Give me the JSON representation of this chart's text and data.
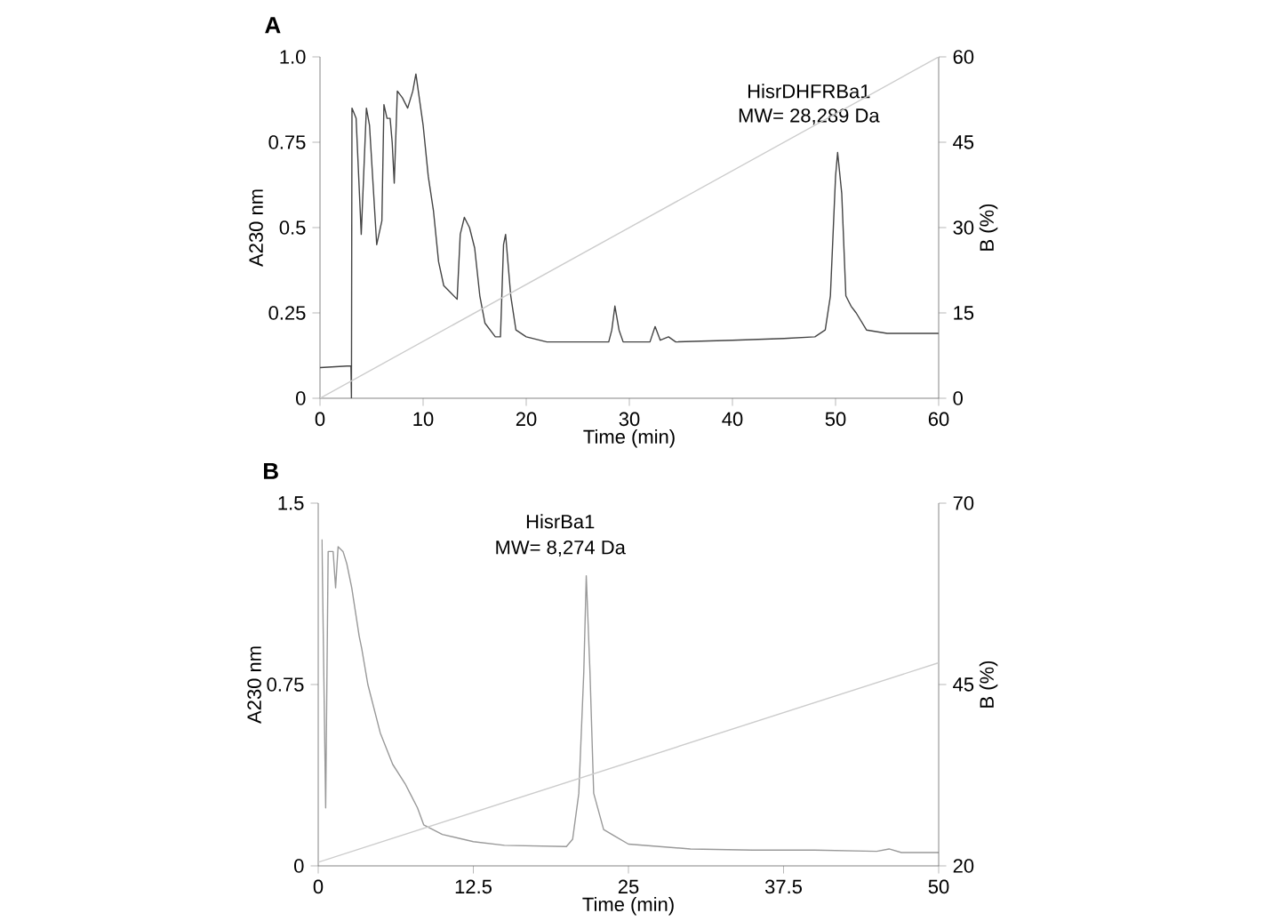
{
  "chart_data": [
    {
      "type": "line",
      "title": "A",
      "xlabel": "Time (min)",
      "ylabel": "A230 nm",
      "y2label": "B (%)",
      "annotations": [
        "HisrDHFRBa1",
        "MW= 28,289 Da"
      ],
      "xlim": [
        0,
        60
      ],
      "ylim": [
        0,
        1
      ],
      "y2lim": [
        0,
        60
      ],
      "xticks": [
        0,
        10,
        20,
        30,
        40,
        50,
        60
      ],
      "yticks": [
        0,
        0.25,
        0.5,
        0.75,
        {
          "value": 1,
          "label": "1.0"
        }
      ],
      "y2ticks": [
        0,
        15,
        30,
        45,
        60
      ],
      "series": [
        {
          "color": "#444444",
          "x": [
            0,
            3,
            3.05,
            3.1,
            3.5,
            4,
            4.5,
            4.8,
            5.5,
            6,
            6.2,
            6.5,
            6.8,
            7,
            7.2,
            7.5,
            8,
            8.5,
            9,
            9.3,
            10,
            10.5,
            11,
            11.5,
            12,
            13.3,
            13.6,
            14,
            14.5,
            15,
            15.5,
            16,
            17,
            17.5,
            17.8,
            18,
            18.5,
            19,
            20,
            22,
            25,
            28,
            28.3,
            28.6,
            29,
            29.4,
            32,
            32.5,
            33,
            33.8,
            34.5,
            40,
            45,
            48,
            49,
            49.5,
            50,
            50.2,
            50.6,
            51,
            51.5,
            52,
            53,
            55,
            60
          ],
          "values": [
            0.09,
            0.095,
            0,
            0.85,
            0.82,
            0.48,
            0.85,
            0.8,
            0.45,
            0.52,
            0.86,
            0.82,
            0.82,
            0.75,
            0.63,
            0.9,
            0.88,
            0.85,
            0.9,
            0.95,
            0.8,
            0.65,
            0.55,
            0.4,
            0.33,
            0.29,
            0.48,
            0.53,
            0.5,
            0.44,
            0.3,
            0.22,
            0.18,
            0.18,
            0.45,
            0.48,
            0.3,
            0.2,
            0.18,
            0.165,
            0.165,
            0.165,
            0.2,
            0.27,
            0.2,
            0.165,
            0.165,
            0.21,
            0.17,
            0.18,
            0.165,
            0.17,
            0.175,
            0.18,
            0.2,
            0.3,
            0.65,
            0.72,
            0.6,
            0.3,
            0.27,
            0.25,
            0.2,
            0.19,
            0.19
          ]
        },
        {
          "color": "#cccccc",
          "axis": "y2",
          "x": [
            0,
            60
          ],
          "values": [
            0,
            60
          ]
        }
      ]
    },
    {
      "type": "line",
      "title": "B",
      "xlabel": "Time (min)",
      "ylabel": "A230 nm",
      "y2label": "B (%)",
      "annotations": [
        "HisrBa1",
        "MW= 8,274 Da"
      ],
      "xlim": [
        0,
        50
      ],
      "ylim": [
        0,
        1.5
      ],
      "y2lim": [
        20,
        70
      ],
      "xticks": [
        0,
        12.5,
        25,
        37.5,
        50
      ],
      "yticks": [
        0,
        0.75,
        1.5
      ],
      "y2ticks": [
        20,
        45,
        70
      ],
      "series": [
        {
          "color": "#999999",
          "x": [
            0.3,
            0.6,
            0.8,
            1.2,
            1.4,
            1.6,
            2,
            2.3,
            2.7,
            3,
            3.3,
            3.5,
            4,
            5,
            6,
            7,
            7.5,
            8,
            8.5,
            10,
            12.5,
            15,
            20,
            20.5,
            21,
            21.4,
            21.6,
            21.9,
            22.2,
            23,
            24,
            25,
            30,
            35,
            40,
            45,
            46,
            47,
            50
          ],
          "values": [
            1.35,
            0.24,
            1.3,
            1.3,
            1.15,
            1.32,
            1.3,
            1.25,
            1.15,
            1.05,
            0.95,
            0.9,
            0.75,
            0.55,
            0.42,
            0.34,
            0.29,
            0.24,
            0.17,
            0.13,
            0.1,
            0.085,
            0.08,
            0.11,
            0.3,
            0.8,
            1.2,
            0.8,
            0.3,
            0.15,
            0.12,
            0.09,
            0.07,
            0.065,
            0.065,
            0.06,
            0.07,
            0.055,
            0.055
          ]
        },
        {
          "color": "#cccccc",
          "axis": "y2",
          "x": [
            0,
            50
          ],
          "values": [
            20.5,
            48
          ]
        }
      ]
    }
  ]
}
